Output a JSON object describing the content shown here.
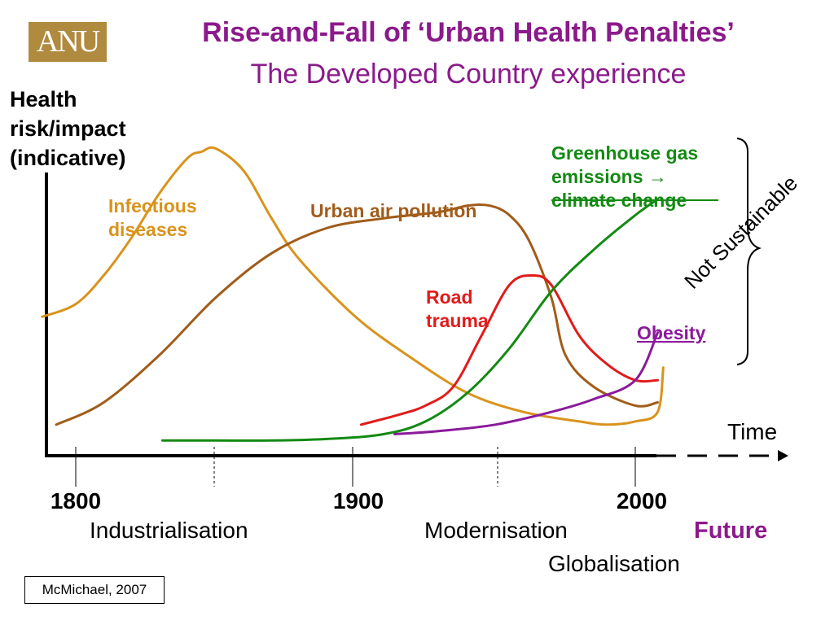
{
  "logo_text": "ANU",
  "title": "Rise-and-Fall of ‘Urban Health Penalties’",
  "subtitle": "The Developed Country experience",
  "citation": "McMichael, 2007",
  "side_note": "Not Sustainable",
  "future_label": "Future",
  "chart_data": {
    "type": "line",
    "ylabel": "Health\nrisk/impact\n(indicative)",
    "xlabel": "Time",
    "x_ticks": [
      1800,
      1900,
      2000
    ],
    "xlim": [
      1790,
      2050
    ],
    "ylim": [
      0,
      100
    ],
    "grid": false,
    "legend": "inline labels",
    "era_labels": [
      "Industrialisation",
      "Modernisation",
      "Globalisation"
    ],
    "series": [
      {
        "name": "Infectious\ndiseases",
        "color": "#d9931c",
        "x": [
          1788,
          1800,
          1810,
          1820,
          1830,
          1840,
          1845,
          1850,
          1860,
          1870,
          1880,
          1900,
          1920,
          1940,
          1960,
          1980,
          1990,
          2000,
          2008,
          2010
        ],
        "y": [
          42,
          46,
          55,
          67,
          81,
          92,
          94,
          95,
          88,
          73,
          60,
          42,
          29,
          18,
          12,
          9,
          8,
          9,
          12,
          26
        ]
      },
      {
        "name": "Urban air pollution",
        "color": "#a15c1a",
        "x": [
          1793,
          1810,
          1830,
          1850,
          1870,
          1890,
          1910,
          1930,
          1940,
          1948,
          1955,
          1962,
          1970,
          1975,
          1985,
          2000,
          2008
        ],
        "y": [
          8,
          15,
          30,
          48,
          62,
          70,
          73,
          75,
          77,
          77,
          74,
          66,
          48,
          30,
          20,
          14,
          15
        ]
      },
      {
        "name": "Road\ntrauma",
        "color": "#e11b1b",
        "x": [
          1902,
          1915,
          1925,
          1935,
          1945,
          1955,
          1963,
          1970,
          1980,
          1990,
          2000,
          2008
        ],
        "y": [
          8,
          11,
          14,
          20,
          36,
          52,
          55,
          52,
          36,
          27,
          22,
          22
        ]
      },
      {
        "name": "Greenhouse gas\nemissions →\nclimate change",
        "color": "#138a13",
        "x": [
          1831,
          1850,
          1870,
          1890,
          1910,
          1925,
          1940,
          1955,
          1970,
          1985,
          2000,
          2008
        ],
        "y": [
          3,
          3,
          3,
          3.5,
          5,
          9,
          18,
          32,
          50,
          63,
          74,
          79
        ]
      },
      {
        "name": "Obesity",
        "color": "#8b1a9b",
        "x": [
          1914,
          1930,
          1950,
          1970,
          1985,
          2000,
          2008
        ],
        "y": [
          5,
          6,
          8,
          12,
          16,
          22,
          37
        ]
      }
    ]
  }
}
